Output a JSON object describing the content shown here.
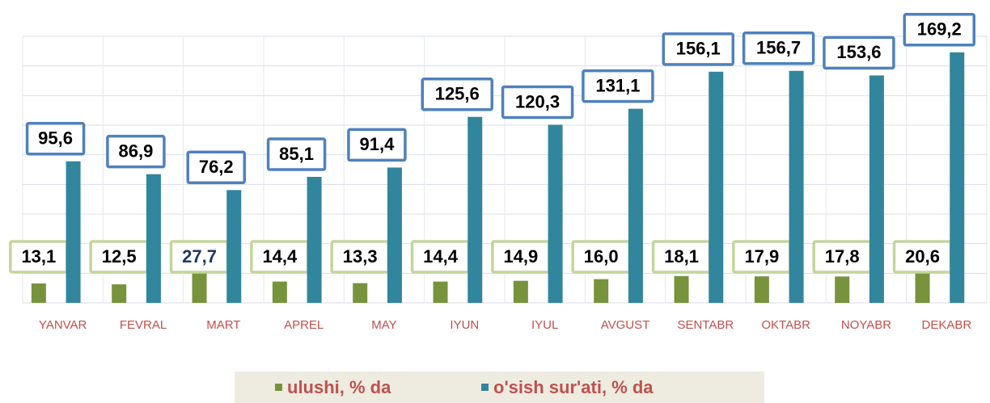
{
  "chart_data": {
    "type": "bar",
    "categories": [
      "YANVAR",
      "FEVRAL",
      "MART",
      "APREL",
      "MAY",
      "IYUN",
      "IYUL",
      "AVGUST",
      "SENTABR",
      "OKTABR",
      "NOYABR",
      "DEKABR"
    ],
    "series": [
      {
        "name": "ulushi, % da",
        "color": "#77933c",
        "label_border": "#c3d69b",
        "values": [
          13.1,
          12.5,
          27.7,
          14.4,
          13.3,
          14.4,
          14.9,
          16.0,
          18.1,
          17.9,
          17.8,
          20.6
        ],
        "value_labels": [
          "13,1",
          "12,5",
          "27,7",
          "14,4",
          "13,3",
          "14,4",
          "14,9",
          "16,0",
          "18,1",
          "17,9",
          "17,8",
          "20,6"
        ]
      },
      {
        "name": "o'sish sur'ati, % da",
        "color": "#31859c",
        "label_border": "#4f81bd",
        "values": [
          95.6,
          86.9,
          76.2,
          85.1,
          91.4,
          125.6,
          120.3,
          131.1,
          156.1,
          156.7,
          153.6,
          169.2
        ],
        "value_labels": [
          "95,6",
          "86,9",
          "76,2",
          "85,1",
          "91,4",
          "125,6",
          "120,3",
          "131,1",
          "156,1",
          "156,7",
          "153,6",
          "169,2"
        ]
      }
    ],
    "ylim": [
      0,
      180
    ],
    "yticks": [
      0,
      20,
      40,
      60,
      80,
      100,
      120,
      140,
      160,
      180
    ],
    "grid": true,
    "legend": "bottom"
  }
}
